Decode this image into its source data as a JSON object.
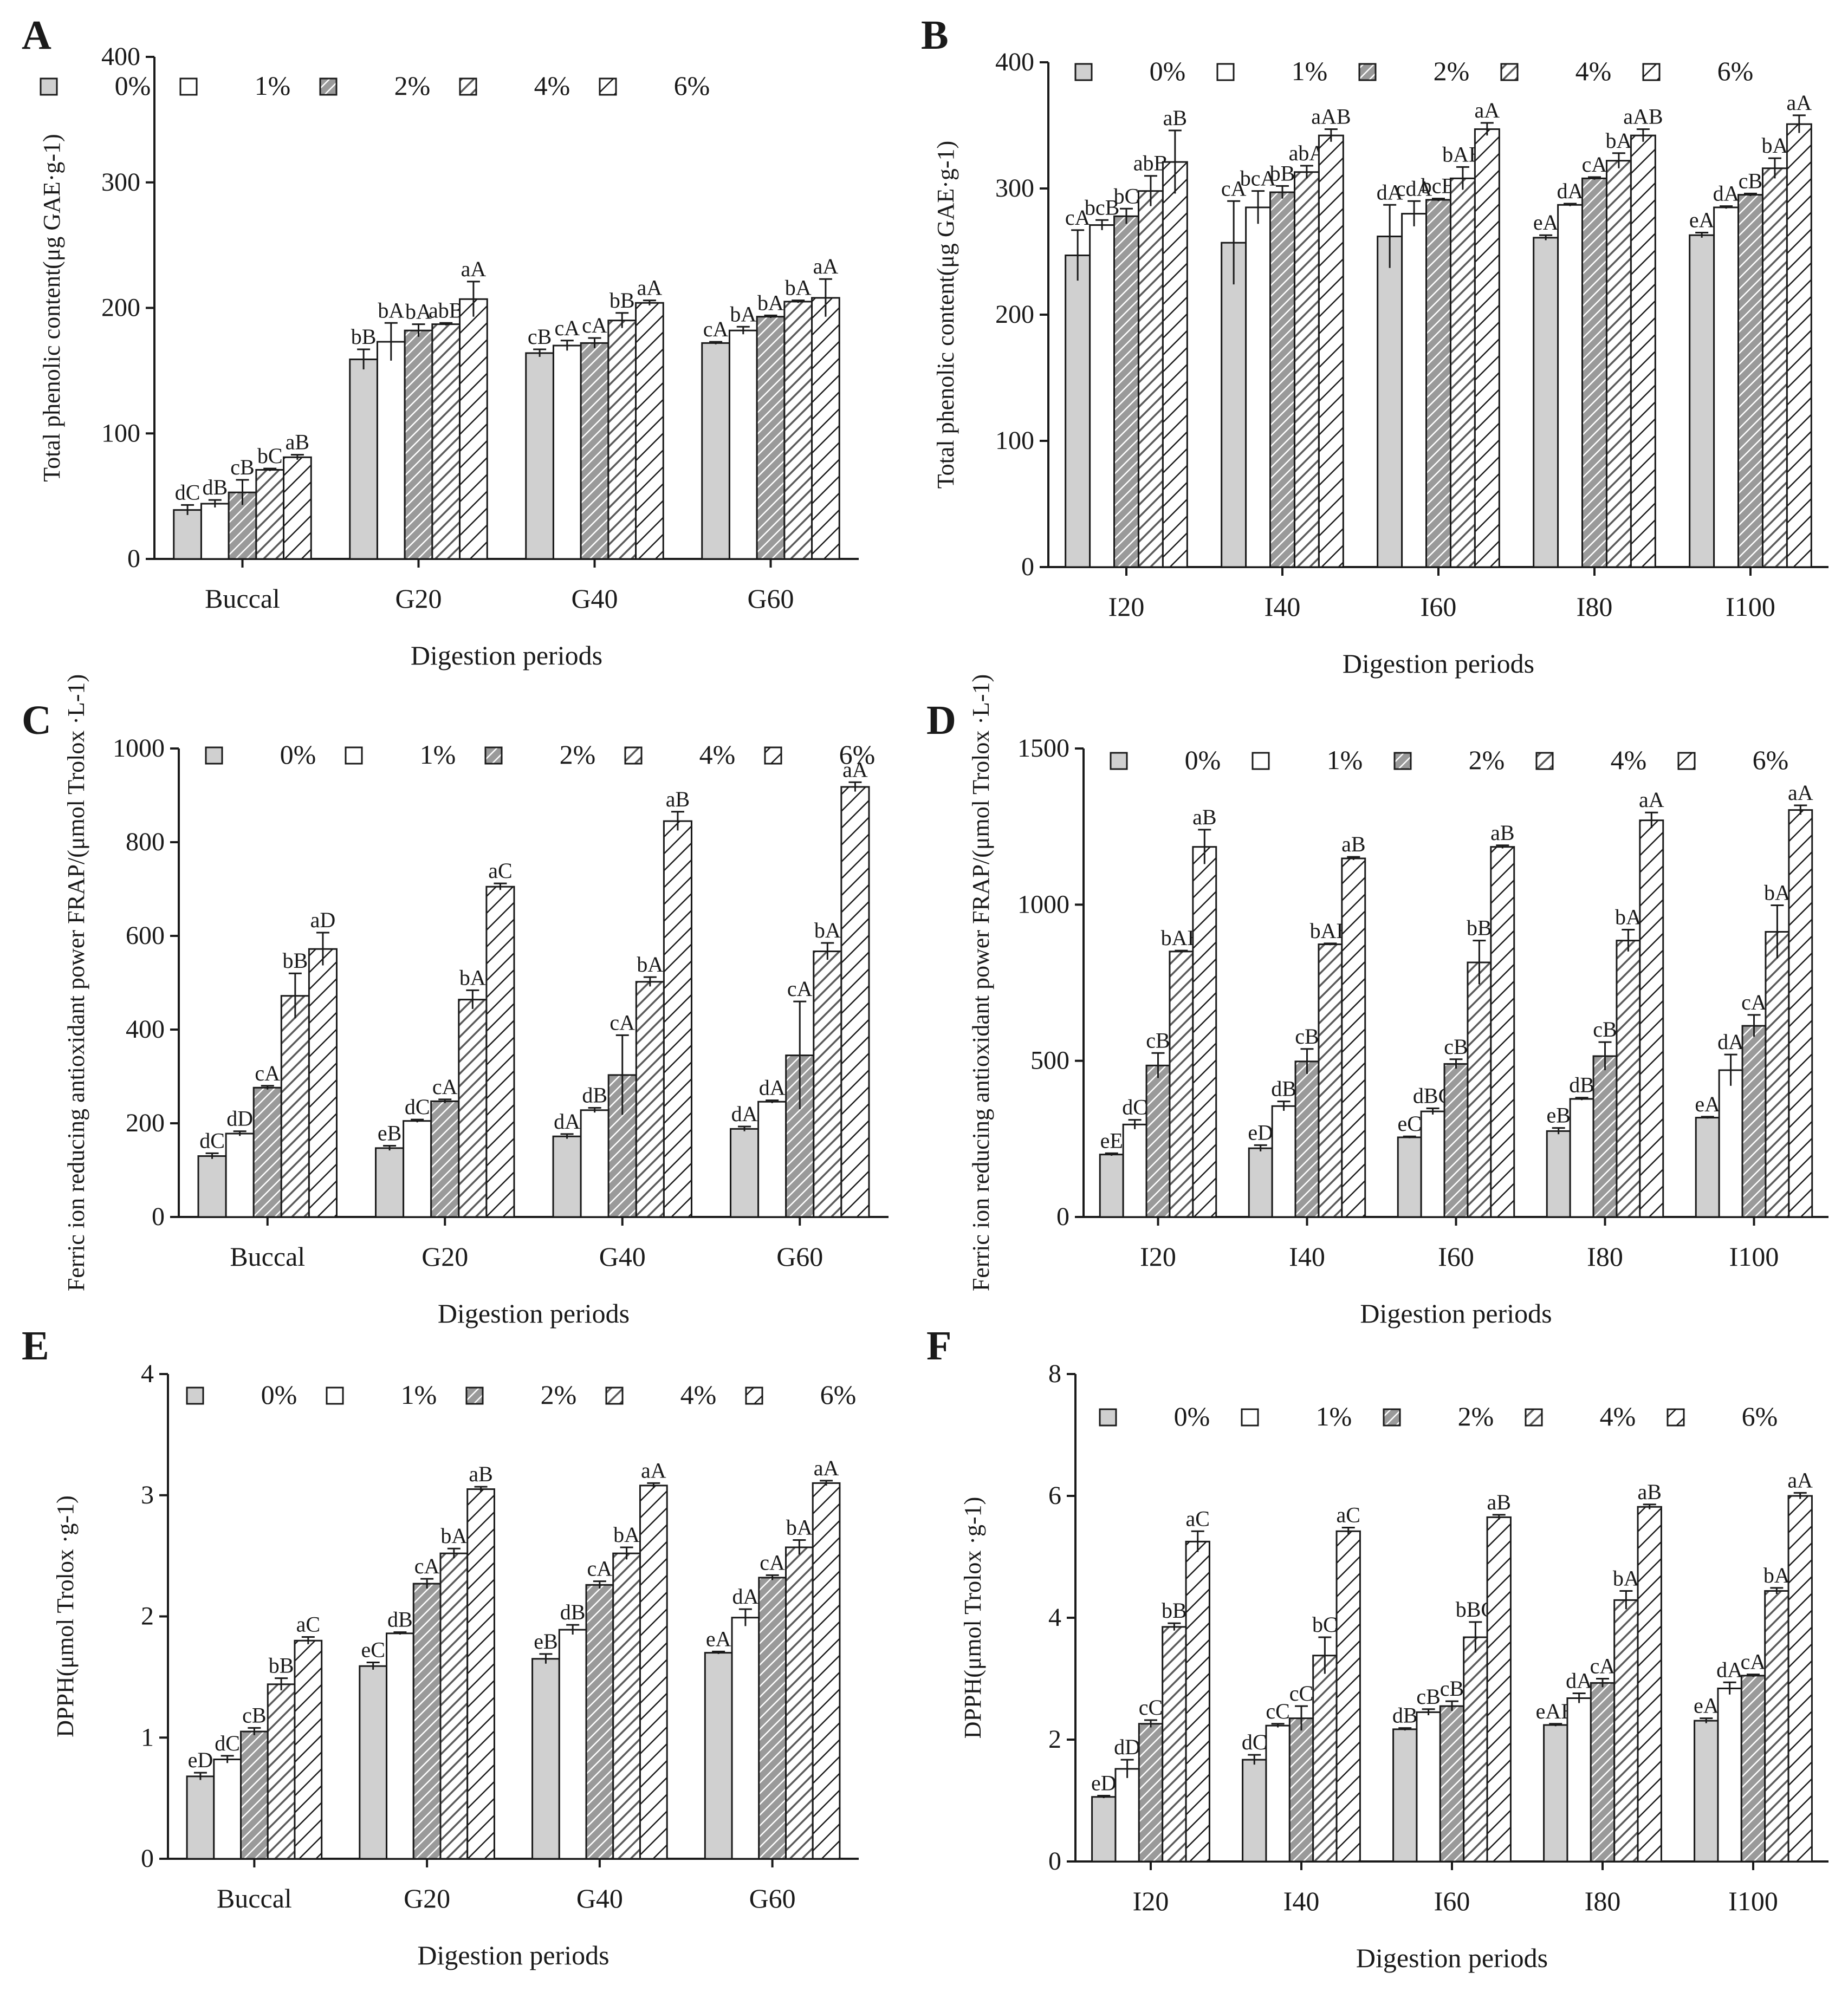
{
  "figure": {
    "legend_labels": [
      "0%",
      "1%",
      "2%",
      "4%",
      "6%"
    ],
    "fills": [
      "#d0d0d0",
      "#ffffff",
      "hatch-dense",
      "hatch-medium",
      "hatch-sparse"
    ],
    "stroke_color": "#1a1a1a"
  },
  "chart_data": [
    {
      "panel": "A",
      "type": "bar",
      "xlabel": "Digestion periods",
      "ylabel": "Total phenolic content(μg GAE·g-1)",
      "ylim": [
        0,
        400
      ],
      "yticks": [
        0,
        100,
        200,
        300,
        400
      ],
      "categories": [
        "Buccal",
        "G20",
        "G40",
        "G60"
      ],
      "series": [
        {
          "name": "0%",
          "values": [
            39,
            159,
            164,
            172
          ],
          "errors": [
            4,
            8,
            3,
            1
          ],
          "labels": [
            "dC",
            "bB",
            "cB",
            "cA"
          ]
        },
        {
          "name": "1%",
          "values": [
            44,
            173,
            170,
            182
          ],
          "errors": [
            3,
            15,
            4,
            3
          ],
          "labels": [
            "dB",
            "bA",
            "cA",
            "bA"
          ]
        },
        {
          "name": "2%",
          "values": [
            53,
            182,
            172,
            193
          ],
          "errors": [
            10,
            5,
            4,
            1
          ],
          "labels": [
            "cB",
            "bA",
            "cA",
            "bA"
          ]
        },
        {
          "name": "4%",
          "values": [
            71,
            187,
            190,
            205
          ],
          "errors": [
            1,
            1,
            6,
            1
          ],
          "labels": [
            "bC",
            "abB",
            "bB",
            "bA"
          ]
        },
        {
          "name": "6%",
          "values": [
            81,
            207,
            204,
            208
          ],
          "errors": [
            2,
            14,
            2,
            15
          ],
          "labels": [
            "aB",
            "aA",
            "aA",
            "aA"
          ]
        }
      ]
    },
    {
      "panel": "B",
      "type": "bar",
      "xlabel": "Digestion periods",
      "ylabel": "Total phenolic content(μg GAE·g-1)",
      "ylim": [
        0,
        400
      ],
      "yticks": [
        0,
        100,
        200,
        300,
        400
      ],
      "categories": [
        "I20",
        "I40",
        "I60",
        "I80",
        "I100"
      ],
      "series": [
        {
          "name": "0%",
          "values": [
            247,
            257,
            262,
            261,
            263
          ],
          "errors": [
            20,
            33,
            25,
            2,
            2
          ],
          "labels": [
            "cA",
            "cA",
            "dA",
            "eA",
            "eA"
          ]
        },
        {
          "name": "1%",
          "values": [
            271,
            285,
            280,
            287,
            285
          ],
          "errors": [
            4,
            13,
            10,
            1,
            1
          ],
          "labels": [
            "bcB",
            "bcA",
            "cdA",
            "dA",
            "dA"
          ]
        },
        {
          "name": "2%",
          "values": [
            278,
            297,
            291,
            308,
            295
          ],
          "errors": [
            6,
            5,
            1,
            1,
            1
          ],
          "labels": [
            "bC",
            "bB",
            "bcB",
            "cA",
            "cB"
          ]
        },
        {
          "name": "4%",
          "values": [
            298,
            313,
            308,
            322,
            316
          ],
          "errors": [
            12,
            5,
            9,
            6,
            8
          ],
          "labels": [
            "abB",
            "abA",
            "bAB",
            "bA",
            "bA"
          ]
        },
        {
          "name": "6%",
          "values": [
            321,
            342,
            347,
            342,
            351
          ],
          "errors": [
            25,
            5,
            5,
            5,
            7
          ],
          "labels": [
            "aB",
            "aAB",
            "aA",
            "aAB",
            "aA"
          ]
        }
      ]
    },
    {
      "panel": "C",
      "type": "bar",
      "xlabel": "Digestion periods",
      "ylabel": "Ferric ion reducing antioxidant power FRAP/(μmol Trolox ·L-1)",
      "ylim": [
        0,
        1000
      ],
      "yticks": [
        0,
        200,
        400,
        600,
        800,
        1000
      ],
      "categories": [
        "Buccal",
        "G20",
        "G40",
        "G60"
      ],
      "series": [
        {
          "name": "0%",
          "values": [
            130,
            147,
            172,
            188
          ],
          "errors": [
            6,
            5,
            5,
            5
          ],
          "labels": [
            "dC",
            "eB",
            "dA",
            "dA"
          ]
        },
        {
          "name": "1%",
          "values": [
            178,
            205,
            228,
            246
          ],
          "errors": [
            5,
            3,
            5,
            3
          ],
          "labels": [
            "dD",
            "dC",
            "dB",
            "dA"
          ]
        },
        {
          "name": "2%",
          "values": [
            276,
            247,
            303,
            345
          ],
          "errors": [
            4,
            4,
            85,
            115
          ],
          "labels": [
            "cA",
            "cA",
            "cA",
            "cA"
          ]
        },
        {
          "name": "4%",
          "values": [
            472,
            464,
            502,
            567
          ],
          "errors": [
            48,
            20,
            10,
            18
          ],
          "labels": [
            "bB",
            "bA",
            "bA",
            "bA"
          ]
        },
        {
          "name": "6%",
          "values": [
            572,
            705,
            845,
            918
          ],
          "errors": [
            35,
            7,
            20,
            10
          ],
          "labels": [
            "aD",
            "aC",
            "aB",
            "aA"
          ]
        }
      ]
    },
    {
      "panel": "D",
      "type": "bar",
      "xlabel": "Digestion periods",
      "ylabel": "Ferric ion reducing antioxidant power FRAP/(μmol Trolox ·L-1)",
      "ylim": [
        0,
        1500
      ],
      "yticks": [
        0,
        500,
        1000,
        1500
      ],
      "categories": [
        "I20",
        "I40",
        "I60",
        "I80",
        "I100"
      ],
      "series": [
        {
          "name": "0%",
          "values": [
            200,
            220,
            255,
            275,
            318
          ],
          "errors": [
            4,
            10,
            3,
            10,
            3
          ],
          "labels": [
            "eE",
            "eD",
            "eC",
            "eB",
            "eA"
          ]
        },
        {
          "name": "1%",
          "values": [
            296,
            355,
            338,
            378,
            470
          ],
          "errors": [
            15,
            15,
            10,
            4,
            50
          ],
          "labels": [
            "dC",
            "dB",
            "dBC",
            "dB",
            "dA"
          ]
        },
        {
          "name": "2%",
          "values": [
            485,
            498,
            490,
            515,
            612
          ],
          "errors": [
            40,
            40,
            15,
            45,
            35
          ],
          "labels": [
            "cB",
            "cB",
            "cB",
            "cB",
            "cA"
          ]
        },
        {
          "name": "4%",
          "values": [
            850,
            873,
            815,
            885,
            913
          ],
          "errors": [
            3,
            3,
            70,
            35,
            85
          ],
          "labels": [
            "bAB",
            "bAB",
            "bB",
            "bA",
            "bA"
          ]
        },
        {
          "name": "6%",
          "values": [
            1185,
            1148,
            1185,
            1270,
            1303
          ],
          "errors": [
            55,
            5,
            5,
            25,
            15
          ],
          "labels": [
            "aB",
            "aB",
            "aB",
            "aA",
            "aA"
          ]
        }
      ]
    },
    {
      "panel": "E",
      "type": "bar",
      "xlabel": "Digestion periods",
      "ylabel": "DPPH(μmol Trolox ·g-1)",
      "ylim": [
        0,
        4
      ],
      "yticks": [
        0,
        1,
        2,
        3,
        4
      ],
      "categories": [
        "Buccal",
        "G20",
        "G40",
        "G60"
      ],
      "series": [
        {
          "name": "0%",
          "values": [
            0.68,
            1.59,
            1.65,
            1.7
          ],
          "errors": [
            0.03,
            0.03,
            0.04,
            0.01
          ],
          "labels": [
            "eD",
            "eC",
            "eB",
            "eA"
          ]
        },
        {
          "name": "1%",
          "values": [
            0.82,
            1.86,
            1.89,
            1.99
          ],
          "errors": [
            0.03,
            0.01,
            0.04,
            0.07
          ],
          "labels": [
            "dC",
            "dB",
            "dB",
            "dA"
          ]
        },
        {
          "name": "2%",
          "values": [
            1.05,
            2.27,
            2.26,
            2.32
          ],
          "errors": [
            0.03,
            0.04,
            0.03,
            0.02
          ],
          "labels": [
            "cB",
            "cA",
            "cA",
            "cA"
          ]
        },
        {
          "name": "4%",
          "values": [
            1.44,
            2.52,
            2.52,
            2.57
          ],
          "errors": [
            0.05,
            0.04,
            0.05,
            0.06
          ],
          "labels": [
            "bB",
            "bA",
            "bA",
            "bA"
          ]
        },
        {
          "name": "6%",
          "values": [
            1.8,
            3.05,
            3.08,
            3.1
          ],
          "errors": [
            0.03,
            0.02,
            0.02,
            0.02
          ],
          "labels": [
            "aC",
            "aB",
            "aA",
            "aA"
          ]
        }
      ]
    },
    {
      "panel": "F",
      "type": "bar",
      "xlabel": "Digestion periods",
      "ylabel": "DPPH(μmol Trolox ·g-1)",
      "ylim": [
        0,
        8
      ],
      "yticks": [
        0,
        2,
        4,
        6,
        8
      ],
      "categories": [
        "I20",
        "I40",
        "I60",
        "I80",
        "I100"
      ],
      "series": [
        {
          "name": "0%",
          "values": [
            1.06,
            1.67,
            2.17,
            2.24,
            2.31
          ],
          "errors": [
            0.02,
            0.08,
            0.02,
            0.02,
            0.04
          ],
          "labels": [
            "eD",
            "dC",
            "dB",
            "eAB",
            "eA"
          ]
        },
        {
          "name": "1%",
          "values": [
            1.52,
            2.23,
            2.45,
            2.68,
            2.84
          ],
          "errors": [
            0.15,
            0.03,
            0.05,
            0.08,
            0.1
          ],
          "labels": [
            "dD",
            "cC",
            "cB",
            "dA",
            "dA"
          ]
        },
        {
          "name": "2%",
          "values": [
            2.26,
            2.35,
            2.55,
            2.93,
            3.05
          ],
          "errors": [
            0.06,
            0.2,
            0.08,
            0.07,
            0.02
          ],
          "labels": [
            "cC",
            "cC",
            "cB",
            "cA",
            "cA"
          ]
        },
        {
          "name": "4%",
          "values": [
            3.85,
            3.38,
            3.68,
            4.29,
            4.44
          ],
          "errors": [
            0.06,
            0.3,
            0.25,
            0.15,
            0.05
          ],
          "labels": [
            "bB",
            "bC",
            "bBC",
            "bA",
            "bA"
          ]
        },
        {
          "name": "6%",
          "values": [
            5.25,
            5.42,
            5.65,
            5.82,
            6.0
          ],
          "errors": [
            0.17,
            0.06,
            0.04,
            0.04,
            0.05
          ],
          "labels": [
            "aC",
            "aC",
            "aB",
            "aB",
            "aA"
          ]
        }
      ]
    }
  ]
}
